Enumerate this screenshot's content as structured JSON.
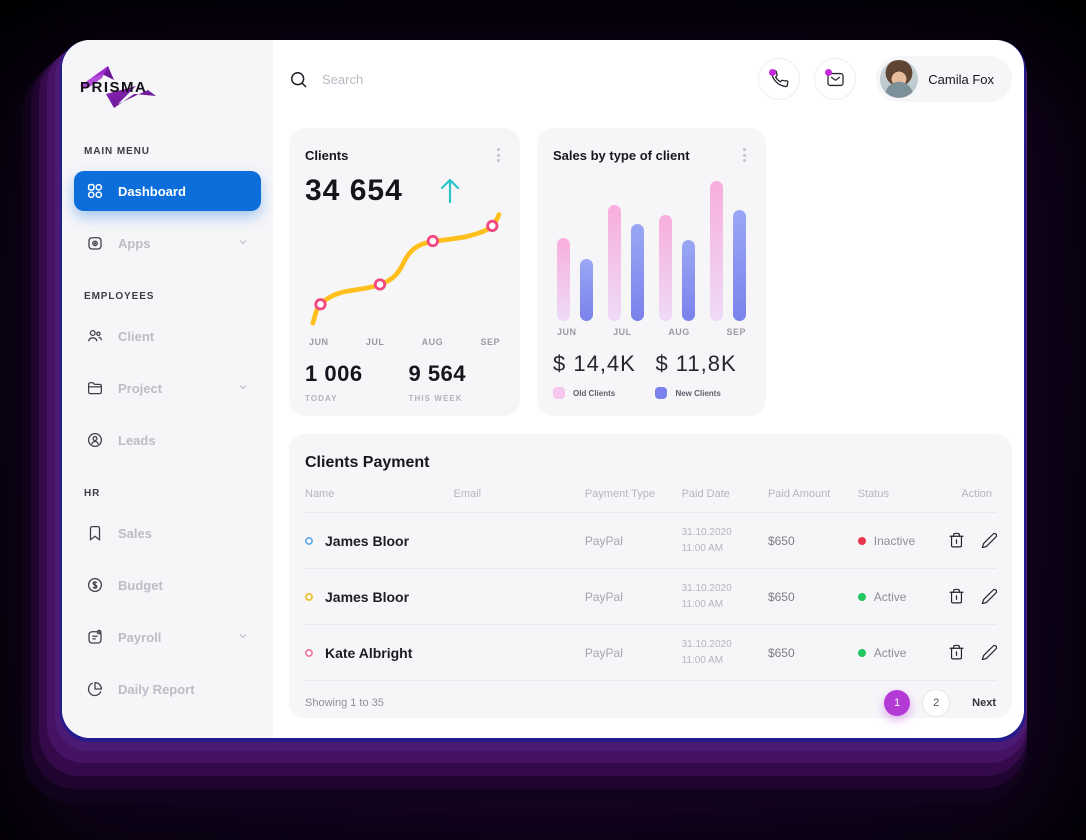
{
  "app": {
    "logo_text": "PRISMA"
  },
  "sidebar": {
    "sections": [
      {
        "label": "MAIN MENU",
        "items": [
          {
            "label": "Dashboard",
            "active": true
          },
          {
            "label": "Apps",
            "chevron": true
          }
        ]
      },
      {
        "label": "EMPLOYEES",
        "items": [
          {
            "label": "Client"
          },
          {
            "label": "Project",
            "chevron": true
          },
          {
            "label": "Leads"
          }
        ]
      },
      {
        "label": "HR",
        "items": [
          {
            "label": "Sales"
          },
          {
            "label": "Budget"
          },
          {
            "label": "Payroll",
            "chevron": true
          },
          {
            "label": "Daily Report"
          }
        ]
      }
    ]
  },
  "topbar": {
    "search_placeholder": "Search",
    "user_name": "Camila Fox"
  },
  "chart_data": [
    {
      "type": "line",
      "title": "Clients",
      "total": "34 654",
      "trend": "up",
      "x": [
        "JUN",
        "JUL",
        "AUG",
        "SEP"
      ],
      "series": [
        {
          "name": "Clients",
          "values_pct": [
            15,
            33,
            71,
            84
          ]
        }
      ],
      "stats": [
        {
          "value": "1 006",
          "label": "TODAY"
        },
        {
          "value": "9 564",
          "label": "THIS WEEK"
        }
      ],
      "line_color": "#FFC01E",
      "marker_color": "#F2487F",
      "grid": false,
      "legend_position": "none"
    },
    {
      "type": "bar",
      "title": "Sales by type of client",
      "categories": [
        "JUN",
        "JUL",
        "AUG",
        "SEP"
      ],
      "series": [
        {
          "name": "Old Clients",
          "total": "$ 14,4K",
          "values_pct": [
            59,
            83,
            76,
            100
          ],
          "color_top": "#F8AEDD",
          "color_bottom": "#EEDBF7"
        },
        {
          "name": "New Clients",
          "total": "$ 11,8K",
          "values_pct": [
            44,
            69,
            58,
            79
          ],
          "color_top": "#9AA7F4",
          "color_bottom": "#7B82EC"
        }
      ],
      "grid": false,
      "legend_position": "bottom"
    }
  ],
  "table": {
    "title": "Clients Payment",
    "columns": [
      "Name",
      "Email",
      "Payment Type",
      "Paid Date",
      "Paid Amount",
      "Status",
      "Action"
    ],
    "rows": [
      {
        "name": "James Bloor",
        "payment_type": "PayPal",
        "date": "31.10.2020",
        "time": "11:00 AM",
        "amount": "$650",
        "status": "Inactive",
        "dot_style": "background:#E8364F"
      },
      {
        "name": "James Bloor",
        "payment_type": "PayPal",
        "date": "31.10.2020",
        "time": "11:00 AM",
        "amount": "$650",
        "status": "Active",
        "dot_style": "background:#22C55E"
      },
      {
        "name": "Kate Albright",
        "payment_type": "PayPal",
        "date": "31.10.2020",
        "time": "11:00 AM",
        "amount": "$650",
        "status": "Active",
        "dot_style": "background:#22C55E"
      }
    ],
    "footer": {
      "showing": "Showing 1 to 35",
      "pages": [
        "1",
        "2"
      ],
      "next_label": "Next"
    }
  },
  "colors": {
    "accent_blue": "#0B6EDB",
    "line_yellow": "#FFC01E",
    "marker_pink": "#F2487F",
    "arrow_teal": "#2BC4C8",
    "bar_pink": "#F6C6EC",
    "bar_blue": "#7B82EC",
    "active_green": "#22C55E",
    "inactive_red": "#E8364F",
    "page_active_purple": "#B43AD6",
    "notification_dot": "#C32BD9"
  }
}
